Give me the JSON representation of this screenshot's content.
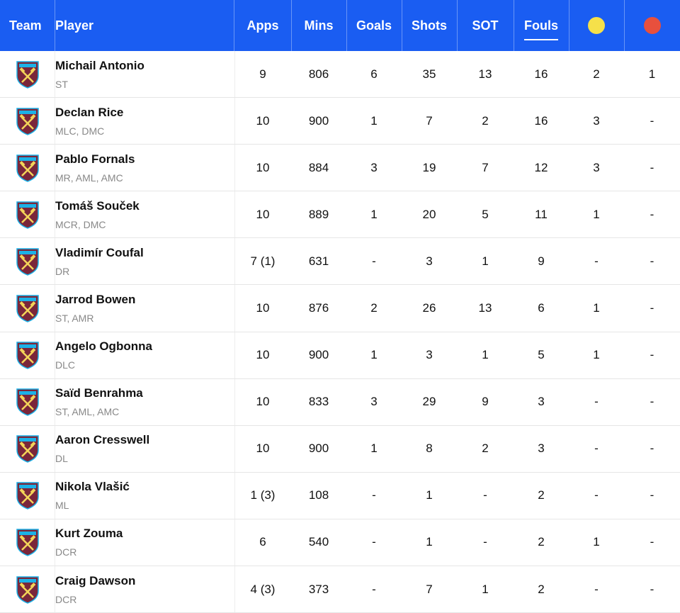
{
  "header": {
    "team": "Team",
    "player": "Player",
    "apps": "Apps",
    "mins": "Mins",
    "goals": "Goals",
    "shots": "Shots",
    "sot": "SOT",
    "fouls": "Fouls",
    "yellow_color": "#f5e04a",
    "red_color": "#e8503d",
    "sorted_by": "Fouls"
  },
  "colors": {
    "header_bg": "#1a5df2",
    "crest_claret": "#7a263a",
    "crest_blue": "#1bb1e7",
    "crest_gold": "#f3d459"
  },
  "rows": [
    {
      "name": "Michail Antonio",
      "pos": "ST",
      "apps": "9",
      "mins": "806",
      "goals": "6",
      "shots": "35",
      "sot": "13",
      "fouls": "16",
      "yellow": "2",
      "red": "1"
    },
    {
      "name": "Declan Rice",
      "pos": "MLC, DMC",
      "apps": "10",
      "mins": "900",
      "goals": "1",
      "shots": "7",
      "sot": "2",
      "fouls": "16",
      "yellow": "3",
      "red": "-"
    },
    {
      "name": "Pablo Fornals",
      "pos": "MR, AML, AMC",
      "apps": "10",
      "mins": "884",
      "goals": "3",
      "shots": "19",
      "sot": "7",
      "fouls": "12",
      "yellow": "3",
      "red": "-"
    },
    {
      "name": "Tomáš Souček",
      "pos": "MCR, DMC",
      "apps": "10",
      "mins": "889",
      "goals": "1",
      "shots": "20",
      "sot": "5",
      "fouls": "11",
      "yellow": "1",
      "red": "-"
    },
    {
      "name": "Vladimír Coufal",
      "pos": "DR",
      "apps": "7 (1)",
      "mins": "631",
      "goals": "-",
      "shots": "3",
      "sot": "1",
      "fouls": "9",
      "yellow": "-",
      "red": "-"
    },
    {
      "name": "Jarrod Bowen",
      "pos": "ST, AMR",
      "apps": "10",
      "mins": "876",
      "goals": "2",
      "shots": "26",
      "sot": "13",
      "fouls": "6",
      "yellow": "1",
      "red": "-"
    },
    {
      "name": "Angelo Ogbonna",
      "pos": "DLC",
      "apps": "10",
      "mins": "900",
      "goals": "1",
      "shots": "3",
      "sot": "1",
      "fouls": "5",
      "yellow": "1",
      "red": "-"
    },
    {
      "name": "Saïd Benrahma",
      "pos": "ST, AML, AMC",
      "apps": "10",
      "mins": "833",
      "goals": "3",
      "shots": "29",
      "sot": "9",
      "fouls": "3",
      "yellow": "-",
      "red": "-"
    },
    {
      "name": "Aaron Cresswell",
      "pos": "DL",
      "apps": "10",
      "mins": "900",
      "goals": "1",
      "shots": "8",
      "sot": "2",
      "fouls": "3",
      "yellow": "-",
      "red": "-"
    },
    {
      "name": "Nikola Vlašić",
      "pos": "ML",
      "apps": "1 (3)",
      "mins": "108",
      "goals": "-",
      "shots": "1",
      "sot": "-",
      "fouls": "2",
      "yellow": "-",
      "red": "-"
    },
    {
      "name": "Kurt Zouma",
      "pos": "DCR",
      "apps": "6",
      "mins": "540",
      "goals": "-",
      "shots": "1",
      "sot": "-",
      "fouls": "2",
      "yellow": "1",
      "red": "-"
    },
    {
      "name": "Craig Dawson",
      "pos": "DCR",
      "apps": "4 (3)",
      "mins": "373",
      "goals": "-",
      "shots": "7",
      "sot": "1",
      "fouls": "2",
      "yellow": "-",
      "red": "-"
    }
  ]
}
